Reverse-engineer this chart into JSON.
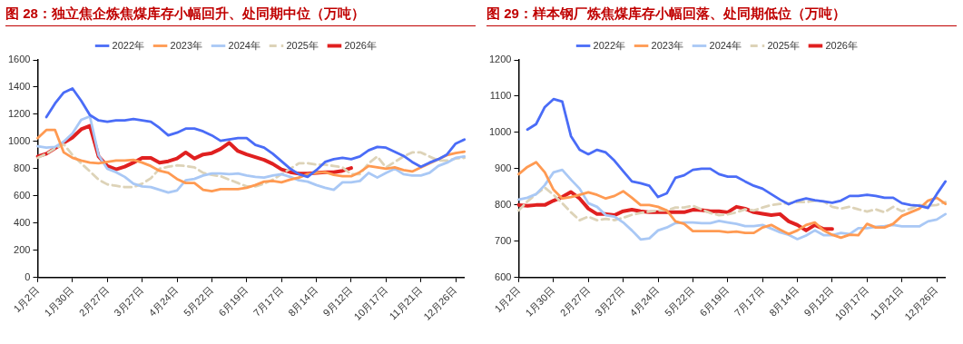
{
  "chart_data": [
    {
      "type": "line",
      "title": "图 28：独立焦企炼焦煤库存小幅回升、处同期中位（万吨）",
      "categories": [
        "1月2日",
        null,
        null,
        null,
        "1月30日",
        null,
        null,
        null,
        "2月27日",
        null,
        null,
        null,
        "3月27日",
        null,
        null,
        null,
        "4月24日",
        null,
        null,
        null,
        "5月22日",
        null,
        null,
        null,
        "6月19日",
        null,
        null,
        null,
        "7月17日",
        null,
        null,
        null,
        "8月14日",
        null,
        null,
        null,
        "9月12日",
        null,
        null,
        null,
        "10月17日",
        null,
        null,
        null,
        "11月21日",
        null,
        null,
        null,
        "12月26日",
        null
      ],
      "ylim": [
        0,
        1600
      ],
      "yticks": [
        0,
        200,
        400,
        600,
        800,
        1000,
        1200,
        1400,
        1600
      ],
      "grid": false,
      "legend": "top",
      "marker": "none",
      "series": [
        {
          "name": "2022年",
          "color": "#4a6cf7",
          "values": [
            null,
            1180,
            1280,
            1360,
            1390,
            1300,
            1195,
            1155,
            1145,
            1155,
            1155,
            1165,
            1155,
            1145,
            1100,
            1045,
            1065,
            1095,
            1095,
            1075,
            1045,
            1005,
            1015,
            1025,
            1025,
            975,
            955,
            910,
            855,
            800,
            760,
            740,
            790,
            850,
            870,
            880,
            870,
            890,
            935,
            960,
            955,
            925,
            895,
            850,
            815,
            845,
            870,
            905,
            985,
            1015
          ]
        },
        {
          "name": "2023年",
          "color": "#ff9a52",
          "values": [
            1025,
            1085,
            1085,
            920,
            880,
            860,
            845,
            840,
            850,
            860,
            860,
            865,
            845,
            820,
            785,
            770,
            725,
            695,
            695,
            645,
            635,
            650,
            650,
            650,
            660,
            680,
            705,
            710,
            700,
            720,
            735,
            760,
            770,
            775,
            755,
            745,
            745,
            775,
            820,
            810,
            800,
            810,
            790,
            780,
            810,
            840,
            870,
            900,
            915,
            925
          ]
        },
        {
          "name": "2024年",
          "color": "#a9c8f5",
          "values": [
            965,
            955,
            960,
            1000,
            1060,
            1160,
            1185,
            900,
            800,
            775,
            740,
            690,
            670,
            665,
            645,
            625,
            640,
            715,
            725,
            750,
            765,
            765,
            760,
            765,
            750,
            740,
            735,
            750,
            760,
            740,
            715,
            705,
            680,
            660,
            645,
            700,
            700,
            710,
            770,
            735,
            770,
            800,
            760,
            750,
            750,
            770,
            820,
            845,
            880,
            890
          ]
        },
        {
          "name": "2025年",
          "color": "#ddd3b8",
          "line_style": "dashed",
          "values": [
            880,
            910,
            950,
            980,
            900,
            840,
            780,
            720,
            685,
            675,
            665,
            665,
            690,
            730,
            800,
            815,
            825,
            820,
            810,
            770,
            755,
            745,
            720,
            695,
            670,
            670,
            690,
            720,
            760,
            800,
            840,
            840,
            830,
            830,
            820,
            810,
            760,
            760,
            840,
            890,
            810,
            850,
            890,
            920,
            920,
            890,
            860,
            860,
            875,
            880
          ]
        },
        {
          "name": "2026年",
          "color": "#e02020",
          "values": [
            890,
            910,
            950,
            990,
            1030,
            1090,
            1115,
            890,
            820,
            795,
            815,
            845,
            880,
            880,
            845,
            855,
            875,
            920,
            875,
            905,
            915,
            945,
            990,
            930,
            905,
            885,
            865,
            835,
            795,
            775,
            765,
            765,
            770,
            775,
            775,
            785,
            805,
            null,
            null,
            null,
            null,
            null,
            null,
            null,
            null,
            null,
            null,
            null,
            null,
            null
          ]
        }
      ]
    },
    {
      "type": "line",
      "title": "图 29：样本钢厂炼焦煤库存小幅回落、处同期低位（万吨）",
      "categories": [
        "1月2日",
        null,
        null,
        null,
        "1月30日",
        null,
        null,
        null,
        "2月27日",
        null,
        null,
        null,
        "3月27日",
        null,
        null,
        null,
        "4月24日",
        null,
        null,
        null,
        "5月22日",
        null,
        null,
        null,
        "6月19日",
        null,
        null,
        null,
        "7月17日",
        null,
        null,
        null,
        "8月14日",
        null,
        null,
        null,
        "9月12日",
        null,
        null,
        null,
        "10月17日",
        null,
        null,
        null,
        "11月21日",
        null,
        null,
        null,
        "12月26日",
        null
      ],
      "ylim": [
        600,
        1200
      ],
      "yticks": [
        600,
        700,
        800,
        900,
        1000,
        1100,
        1200
      ],
      "grid": false,
      "legend": "top",
      "marker": "none",
      "series": [
        {
          "name": "2022年",
          "color": "#4a6cf7",
          "values": [
            null,
            1008,
            1023,
            1070,
            1092,
            1085,
            990,
            952,
            940,
            952,
            945,
            922,
            893,
            865,
            860,
            853,
            822,
            832,
            875,
            882,
            897,
            900,
            900,
            885,
            878,
            878,
            865,
            853,
            845,
            830,
            815,
            802,
            812,
            818,
            813,
            810,
            806,
            812,
            825,
            825,
            828,
            825,
            820,
            820,
            805,
            800,
            798,
            792,
            830,
            865
          ]
        },
        {
          "name": "2023年",
          "color": "#ff9a52",
          "values": [
            885,
            905,
            918,
            890,
            842,
            818,
            822,
            828,
            835,
            828,
            818,
            825,
            838,
            820,
            800,
            800,
            795,
            785,
            755,
            748,
            728,
            728,
            728,
            728,
            725,
            727,
            723,
            723,
            738,
            745,
            732,
            720,
            730,
            745,
            752,
            730,
            718,
            710,
            718,
            717,
            748,
            738,
            738,
            748,
            770,
            780,
            790,
            812,
            820,
            803
          ]
        },
        {
          "name": "2024年",
          "color": "#a9c8f5",
          "values": [
            815,
            820,
            830,
            855,
            890,
            897,
            870,
            845,
            805,
            795,
            772,
            768,
            752,
            730,
            705,
            708,
            730,
            738,
            750,
            752,
            752,
            750,
            750,
            756,
            752,
            748,
            742,
            742,
            745,
            735,
            725,
            718,
            706,
            716,
            730,
            717,
            717,
            723,
            720,
            736,
            736,
            740,
            742,
            745,
            741,
            741,
            741,
            755,
            760,
            775
          ]
        },
        {
          "name": "2025年",
          "color": "#ddd3b8",
          "line_style": "dashed",
          "values": [
            785,
            810,
            830,
            848,
            828,
            805,
            780,
            758,
            768,
            758,
            762,
            758,
            765,
            773,
            778,
            782,
            785,
            785,
            793,
            793,
            798,
            788,
            778,
            772,
            774,
            780,
            788,
            785,
            793,
            800,
            803,
            805,
            808,
            808,
            812,
            810,
            795,
            790,
            795,
            788,
            782,
            788,
            780,
            795,
            783,
            790,
            800,
            798,
            800,
            808
          ]
        },
        {
          "name": "2026年",
          "color": "#e02020",
          "values": [
            800,
            798,
            800,
            800,
            812,
            822,
            836,
            818,
            790,
            775,
            775,
            772,
            783,
            787,
            783,
            780,
            780,
            780,
            780,
            780,
            787,
            786,
            783,
            783,
            780,
            795,
            790,
            780,
            776,
            772,
            775,
            755,
            745,
            730,
            745,
            734,
            734,
            null,
            null,
            null,
            null,
            null,
            null,
            null,
            null,
            null,
            null,
            null,
            null,
            null
          ]
        }
      ]
    }
  ]
}
